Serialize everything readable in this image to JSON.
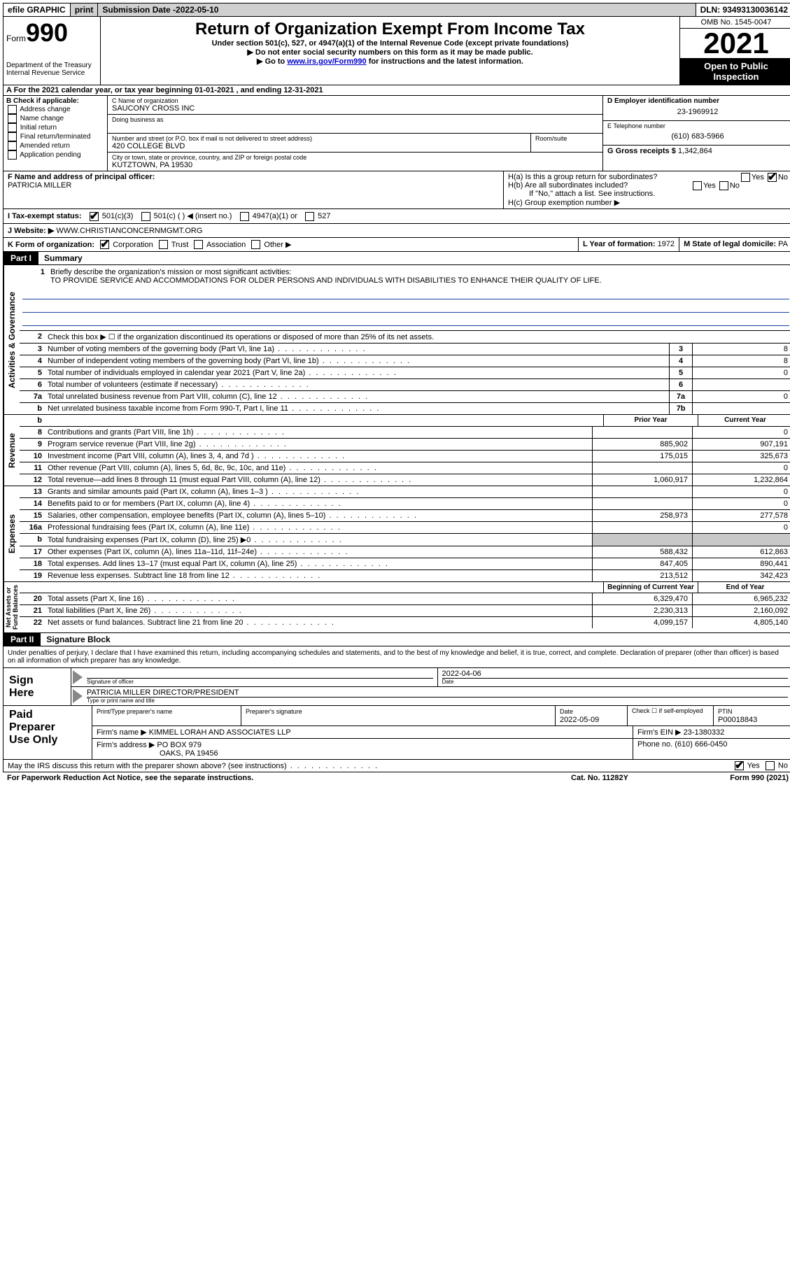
{
  "top": {
    "efile": "efile GRAPHIC",
    "print": "print",
    "sub_label": "Submission Date - ",
    "sub_date": "2022-05-10",
    "dln_label": "DLN: ",
    "dln": "93493130036142"
  },
  "header": {
    "form_word": "Form",
    "form_num": "990",
    "dept": "Department of the Treasury",
    "irs": "Internal Revenue Service",
    "title": "Return of Organization Exempt From Income Tax",
    "sub": "Under section 501(c), 527, or 4947(a)(1) of the Internal Revenue Code (except private foundations)",
    "note1": "▶ Do not enter social security numbers on this form as it may be made public.",
    "note2_pre": "▶ Go to ",
    "note2_link": "www.irs.gov/Form990",
    "note2_post": " for instructions and the latest information.",
    "omb": "OMB No. 1545-0047",
    "year": "2021",
    "inspection": "Open to Public Inspection"
  },
  "row_a": {
    "text": "A For the 2021 calendar year, or tax year beginning 01-01-2021    , and ending 12-31-2021"
  },
  "col_b": {
    "label": "B Check if applicable:",
    "opts": [
      "Address change",
      "Name change",
      "Initial return",
      "Final return/terminated",
      "Amended return",
      "Application pending"
    ]
  },
  "org": {
    "c_label": "C Name of organization",
    "name": "SAUCONY CROSS INC",
    "dba_label": "Doing business as",
    "street_label": "Number and street (or P.O. box if mail is not delivered to street address)",
    "street": "420 COLLEGE BLVD",
    "room_label": "Room/suite",
    "city_label": "City or town, state or province, country, and ZIP or foreign postal code",
    "city": "KUTZTOWN, PA  19530"
  },
  "right": {
    "d_label": "D Employer identification number",
    "ein": "23-1969912",
    "e_label": "E Telephone number",
    "phone": "(610) 683-5966",
    "g_label": "G Gross receipts $ ",
    "gross": "1,342,864"
  },
  "f": {
    "label": "F Name and address of principal officer:",
    "name": "PATRICIA MILLER"
  },
  "h": {
    "a": "H(a)  Is this a group return for subordinates?",
    "b": "H(b)  Are all subordinates included?",
    "b_note": "If \"No,\" attach a list. See instructions.",
    "c": "H(c)  Group exemption number ▶"
  },
  "i": {
    "label": "I   Tax-exempt status:",
    "o1": "501(c)(3)",
    "o2": "501(c) (  ) ◀ (insert no.)",
    "o3": "4947(a)(1) or",
    "o4": "527"
  },
  "j": {
    "label": "J   Website: ▶ ",
    "val": "WWW.CHRISTIANCONCERNMGMT.ORG"
  },
  "k": {
    "label": "K Form of organization:",
    "o1": "Corporation",
    "o2": "Trust",
    "o3": "Association",
    "o4": "Other ▶"
  },
  "l": {
    "label": "L Year of formation: ",
    "val": "1972"
  },
  "m": {
    "label": "M State of legal domicile: ",
    "val": "PA"
  },
  "part1": {
    "label": "Part I",
    "title": "Summary",
    "q1": "Briefly describe the organization's mission or most significant activities:",
    "mission": "TO PROVIDE SERVICE AND ACCOMMODATIONS FOR OLDER PERSONS AND INDIVIDUALS WITH DISABILITIES TO ENHANCE THEIR QUALITY OF LIFE.",
    "q2": "Check this box ▶ ☐ if the organization discontinued its operations or disposed of more than 25% of its net assets.",
    "rows_ag": [
      {
        "n": "3",
        "t": "Number of voting members of the governing body (Part VI, line 1a)",
        "b": "3",
        "v": "8"
      },
      {
        "n": "4",
        "t": "Number of independent voting members of the governing body (Part VI, line 1b)",
        "b": "4",
        "v": "8"
      },
      {
        "n": "5",
        "t": "Total number of individuals employed in calendar year 2021 (Part V, line 2a)",
        "b": "5",
        "v": "0"
      },
      {
        "n": "6",
        "t": "Total number of volunteers (estimate if necessary)",
        "b": "6",
        "v": ""
      },
      {
        "n": "7a",
        "t": "Total unrelated business revenue from Part VIII, column (C), line 12",
        "b": "7a",
        "v": "0"
      },
      {
        "n": "b",
        "t": "Net unrelated business taxable income from Form 990-T, Part I, line 11",
        "b": "7b",
        "v": ""
      }
    ],
    "prior": "Prior Year",
    "current": "Current Year",
    "rows_rev": [
      {
        "n": "8",
        "t": "Contributions and grants (Part VIII, line 1h)",
        "p": "",
        "c": "0"
      },
      {
        "n": "9",
        "t": "Program service revenue (Part VIII, line 2g)",
        "p": "885,902",
        "c": "907,191"
      },
      {
        "n": "10",
        "t": "Investment income (Part VIII, column (A), lines 3, 4, and 7d )",
        "p": "175,015",
        "c": "325,673"
      },
      {
        "n": "11",
        "t": "Other revenue (Part VIII, column (A), lines 5, 6d, 8c, 9c, 10c, and 11e)",
        "p": "",
        "c": "0"
      },
      {
        "n": "12",
        "t": "Total revenue—add lines 8 through 11 (must equal Part VIII, column (A), line 12)",
        "p": "1,060,917",
        "c": "1,232,864"
      }
    ],
    "rows_exp": [
      {
        "n": "13",
        "t": "Grants and similar amounts paid (Part IX, column (A), lines 1–3 )",
        "p": "",
        "c": "0"
      },
      {
        "n": "14",
        "t": "Benefits paid to or for members (Part IX, column (A), line 4)",
        "p": "",
        "c": "0"
      },
      {
        "n": "15",
        "t": "Salaries, other compensation, employee benefits (Part IX, column (A), lines 5–10)",
        "p": "258,973",
        "c": "277,578"
      },
      {
        "n": "16a",
        "t": "Professional fundraising fees (Part IX, column (A), line 11e)",
        "p": "",
        "c": "0"
      },
      {
        "n": "b",
        "t": "Total fundraising expenses (Part IX, column (D), line 25) ▶0",
        "p": "gray",
        "c": "gray"
      },
      {
        "n": "17",
        "t": "Other expenses (Part IX, column (A), lines 11a–11d, 11f–24e)",
        "p": "588,432",
        "c": "612,863"
      },
      {
        "n": "18",
        "t": "Total expenses. Add lines 13–17 (must equal Part IX, column (A), line 25)",
        "p": "847,405",
        "c": "890,441"
      },
      {
        "n": "19",
        "t": "Revenue less expenses. Subtract line 18 from line 12",
        "p": "213,512",
        "c": "342,423"
      }
    ],
    "beg": "Beginning of Current Year",
    "end": "End of Year",
    "rows_net": [
      {
        "n": "20",
        "t": "Total assets (Part X, line 16)",
        "p": "6,329,470",
        "c": "6,965,232"
      },
      {
        "n": "21",
        "t": "Total liabilities (Part X, line 26)",
        "p": "2,230,313",
        "c": "2,160,092"
      },
      {
        "n": "22",
        "t": "Net assets or fund balances. Subtract line 21 from line 20",
        "p": "4,099,157",
        "c": "4,805,140"
      }
    ]
  },
  "part2": {
    "label": "Part II",
    "title": "Signature Block",
    "penalty": "Under penalties of perjury, I declare that I have examined this return, including accompanying schedules and statements, and to the best of my knowledge and belief, it is true, correct, and complete. Declaration of preparer (other than officer) is based on all information of which preparer has any knowledge.",
    "sign": "Sign Here",
    "sig_officer": "Signature of officer",
    "sig_date": "2022-04-06",
    "date_lbl": "Date",
    "officer_name": "PATRICIA MILLER  DIRECTOR/PRESIDENT",
    "type_lbl": "Type or print name and title",
    "paid": "Paid Preparer Use Only",
    "prep_name_lbl": "Print/Type preparer's name",
    "prep_sig_lbl": "Preparer's signature",
    "prep_date_lbl": "Date",
    "prep_date": "2022-05-09",
    "check_self": "Check ☐ if self-employed",
    "ptin_lbl": "PTIN",
    "ptin": "P00018843",
    "firm_name_lbl": "Firm's name     ▶ ",
    "firm_name": "KIMMEL LORAH AND ASSOCIATES LLP",
    "firm_ein_lbl": "Firm's EIN ▶ ",
    "firm_ein": "23-1380332",
    "firm_addr_lbl": "Firm's address ▶ ",
    "firm_addr1": "PO BOX 979",
    "firm_addr2": "OAKS, PA  19456",
    "firm_phone_lbl": "Phone no. ",
    "firm_phone": "(610) 666-0450",
    "discuss": "May the IRS discuss this return with the preparer shown above? (see instructions)"
  },
  "footer": {
    "pra": "For Paperwork Reduction Act Notice, see the separate instructions.",
    "cat": "Cat. No. 11282Y",
    "form": "Form 990 (2021)"
  }
}
